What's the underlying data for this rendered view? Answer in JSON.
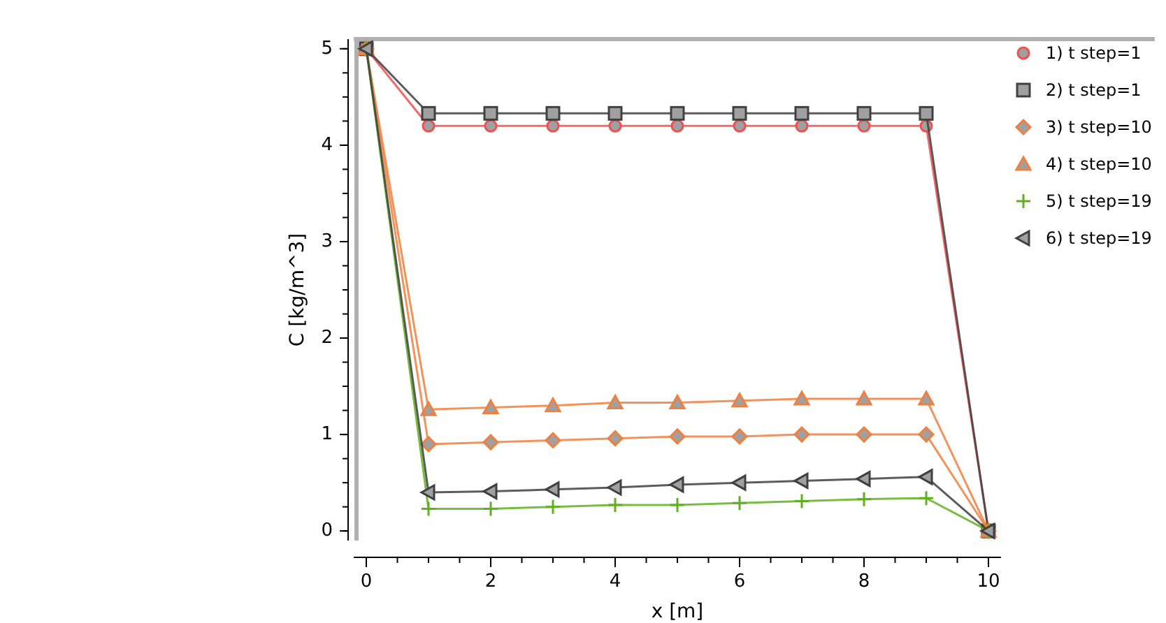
{
  "chart_data": {
    "type": "line",
    "xlabel": "x [m]",
    "ylabel": "C [kg/m^3]",
    "x": [
      0,
      1,
      2,
      3,
      4,
      5,
      6,
      7,
      8,
      9,
      10
    ],
    "xlim": [
      -0.2,
      10.2
    ],
    "ylim": [
      -0.1,
      5.1
    ],
    "xticks": [
      0,
      2,
      4,
      6,
      8,
      10
    ],
    "yticks": [
      0,
      1,
      2,
      3,
      4,
      5
    ],
    "grid": false,
    "legend": "top right",
    "series": [
      {
        "name": "1) t step=1",
        "color": "#f05050",
        "marker": "circle",
        "values": [
          5,
          4.2,
          4.2,
          4.2,
          4.2,
          4.2,
          4.2,
          4.2,
          4.2,
          4.2,
          0
        ]
      },
      {
        "name": "2) t step=1",
        "color": "#404040",
        "marker": "square",
        "values": [
          5,
          4.33,
          4.33,
          4.33,
          4.33,
          4.33,
          4.33,
          4.33,
          4.33,
          4.33,
          0
        ]
      },
      {
        "name": "3) t step=10",
        "color": "#f08040",
        "marker": "diamond",
        "values": [
          5,
          0.9,
          0.92,
          0.94,
          0.96,
          0.98,
          0.98,
          1.0,
          1.0,
          1.0,
          0
        ]
      },
      {
        "name": "4) t step=10",
        "color": "#f08040",
        "marker": "triangle",
        "values": [
          5,
          1.26,
          1.28,
          1.3,
          1.33,
          1.33,
          1.35,
          1.37,
          1.37,
          1.37,
          0
        ]
      },
      {
        "name": "5) t step=19",
        "color": "#60b020",
        "marker": "cross",
        "values": [
          5,
          0.23,
          0.23,
          0.25,
          0.27,
          0.27,
          0.29,
          0.31,
          0.33,
          0.34,
          0
        ]
      },
      {
        "name": "6) t step=19",
        "color": "#404040",
        "marker": "triangle-left",
        "values": [
          5,
          0.4,
          0.41,
          0.43,
          0.45,
          0.48,
          0.5,
          0.52,
          0.54,
          0.56,
          0
        ]
      }
    ]
  }
}
